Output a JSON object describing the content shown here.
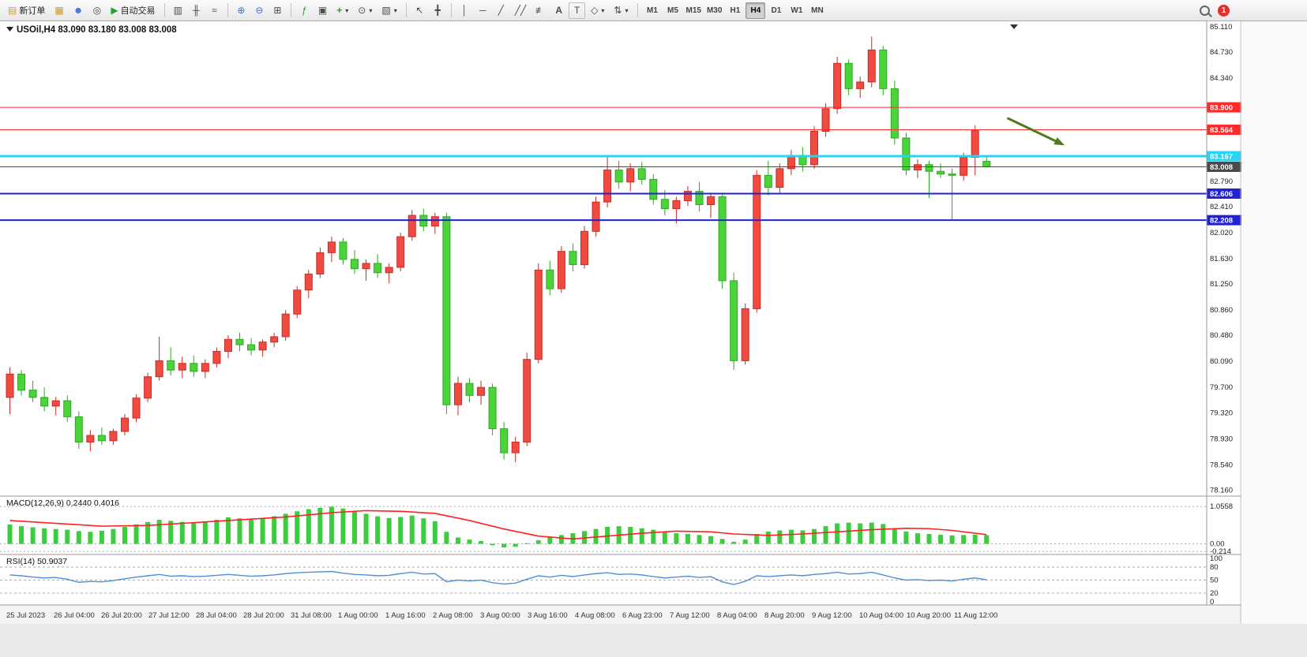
{
  "toolbar": {
    "new_order": "新订单",
    "auto_trading": "自动交易",
    "timeframes": [
      "M1",
      "M5",
      "M15",
      "M30",
      "H1",
      "H4",
      "D1",
      "W1",
      "MN"
    ],
    "active_timeframe": "H4",
    "notification_count": "1",
    "text_tool": "A",
    "textbox_tool": "T"
  },
  "icons": {
    "new_order": "▤",
    "symbols": "▦",
    "market_watch": "☻",
    "data_window": "◎",
    "auto_trading": "▶",
    "bar_chart": "▥",
    "candle_chart": "╫",
    "line_chart": "≈",
    "zoom_in": "⊕",
    "zoom_out": "⊖",
    "grid": "⊞",
    "indicators": "ƒ",
    "objects_list": "▣",
    "add_indicator": "+",
    "periods": "⊙",
    "templates": "▧",
    "cursor": "↖",
    "crosshair": "╋",
    "vline": "│",
    "hline": "─",
    "trendline": "╱",
    "channel": "╱╱",
    "fibonacci": "≢",
    "shapes": "◇",
    "arrows_tool": "⇅",
    "dropdown": "▾"
  },
  "chart": {
    "symbol_header": "USOil,H4 83.090 83.180 83.008 83.008",
    "macd_header": "MACD(12,26,9) 0.2440 0.4016",
    "rsi_header": "RSI(14) 50.9037"
  },
  "chart_data": {
    "type": "candlestick",
    "title": "USOil,H4",
    "ohlc_display": {
      "open": "83.090",
      "high": "83.180",
      "low": "83.008",
      "close": "83.008"
    },
    "ylim": [
      78.07,
      85.19
    ],
    "colors": {
      "up": "#f04a41",
      "up_stroke": "#c92c24",
      "down": "#4ad43a",
      "down_stroke": "#2fa823"
    },
    "price_axis_ticks": [
      "85.110",
      "84.730",
      "84.340",
      "82.790",
      "82.410",
      "82.020",
      "81.630",
      "81.250",
      "80.860",
      "80.480",
      "80.090",
      "79.700",
      "79.320",
      "78.930",
      "78.540",
      "78.160"
    ],
    "candles": [
      [
        79.55,
        80.0,
        79.3,
        79.9
      ],
      [
        79.9,
        79.96,
        79.58,
        79.66
      ],
      [
        79.66,
        79.8,
        79.48,
        79.55
      ],
      [
        79.55,
        79.7,
        79.34,
        79.42
      ],
      [
        79.42,
        79.56,
        79.28,
        79.5
      ],
      [
        79.5,
        79.58,
        79.18,
        79.26
      ],
      [
        79.26,
        79.34,
        78.78,
        78.88
      ],
      [
        78.88,
        79.06,
        78.74,
        78.98
      ],
      [
        78.98,
        79.1,
        78.84,
        78.9
      ],
      [
        78.9,
        79.08,
        78.84,
        79.04
      ],
      [
        79.04,
        79.3,
        78.98,
        79.24
      ],
      [
        79.24,
        79.6,
        79.18,
        79.54
      ],
      [
        79.54,
        79.92,
        79.48,
        79.86
      ],
      [
        79.86,
        80.46,
        79.8,
        80.1
      ],
      [
        80.1,
        80.3,
        79.88,
        79.96
      ],
      [
        79.96,
        80.16,
        79.84,
        80.06
      ],
      [
        80.06,
        80.18,
        79.86,
        79.94
      ],
      [
        79.94,
        80.12,
        79.84,
        80.06
      ],
      [
        80.06,
        80.3,
        80.0,
        80.24
      ],
      [
        80.24,
        80.48,
        80.14,
        80.42
      ],
      [
        80.42,
        80.52,
        80.24,
        80.34
      ],
      [
        80.34,
        80.44,
        80.18,
        80.26
      ],
      [
        80.26,
        80.42,
        80.16,
        80.38
      ],
      [
        80.38,
        80.52,
        80.3,
        80.46
      ],
      [
        80.46,
        80.86,
        80.4,
        80.8
      ],
      [
        80.8,
        81.22,
        80.74,
        81.16
      ],
      [
        81.16,
        81.46,
        81.04,
        81.4
      ],
      [
        81.4,
        81.8,
        81.34,
        81.72
      ],
      [
        81.72,
        81.96,
        81.58,
        81.88
      ],
      [
        81.88,
        81.94,
        81.54,
        81.62
      ],
      [
        81.62,
        81.76,
        81.4,
        81.48
      ],
      [
        81.48,
        81.62,
        81.3,
        81.56
      ],
      [
        81.56,
        81.7,
        81.34,
        81.42
      ],
      [
        81.42,
        81.56,
        81.26,
        81.5
      ],
      [
        81.5,
        82.02,
        81.44,
        81.96
      ],
      [
        81.96,
        82.36,
        81.9,
        82.28
      ],
      [
        82.28,
        82.38,
        82.04,
        82.12
      ],
      [
        82.12,
        82.32,
        82.0,
        82.26
      ],
      [
        82.26,
        82.32,
        79.3,
        79.44
      ],
      [
        79.44,
        79.86,
        79.28,
        79.76
      ],
      [
        79.76,
        79.84,
        79.48,
        79.58
      ],
      [
        79.58,
        79.8,
        79.44,
        79.7
      ],
      [
        79.7,
        79.76,
        78.98,
        79.08
      ],
      [
        79.08,
        79.18,
        78.62,
        78.72
      ],
      [
        78.72,
        78.96,
        78.58,
        78.88
      ],
      [
        78.88,
        80.22,
        78.82,
        80.12
      ],
      [
        80.12,
        81.56,
        80.06,
        81.46
      ],
      [
        81.46,
        81.6,
        81.08,
        81.18
      ],
      [
        81.18,
        81.82,
        81.12,
        81.74
      ],
      [
        81.74,
        81.86,
        81.44,
        81.54
      ],
      [
        81.54,
        82.12,
        81.48,
        82.04
      ],
      [
        82.04,
        82.56,
        81.96,
        82.48
      ],
      [
        82.48,
        83.17,
        82.4,
        82.96
      ],
      [
        82.96,
        83.1,
        82.68,
        82.78
      ],
      [
        82.78,
        83.06,
        82.64,
        82.98
      ],
      [
        82.98,
        83.08,
        82.74,
        82.82
      ],
      [
        82.82,
        82.9,
        82.44,
        82.52
      ],
      [
        82.52,
        82.66,
        82.28,
        82.38
      ],
      [
        82.38,
        82.56,
        82.16,
        82.5
      ],
      [
        82.5,
        82.72,
        82.42,
        82.64
      ],
      [
        82.64,
        82.78,
        82.34,
        82.44
      ],
      [
        82.44,
        82.62,
        82.24,
        82.56
      ],
      [
        82.56,
        82.62,
        81.18,
        81.3
      ],
      [
        81.3,
        81.42,
        79.96,
        80.1
      ],
      [
        80.1,
        80.96,
        80.04,
        80.88
      ],
      [
        80.88,
        82.96,
        80.82,
        82.88
      ],
      [
        82.88,
        83.1,
        82.58,
        82.7
      ],
      [
        82.7,
        83.06,
        82.62,
        82.98
      ],
      [
        82.98,
        83.26,
        82.88,
        83.18
      ],
      [
        83.18,
        83.3,
        82.94,
        83.04
      ],
      [
        83.04,
        83.62,
        82.98,
        83.54
      ],
      [
        83.54,
        83.96,
        83.46,
        83.88
      ],
      [
        83.88,
        84.66,
        83.8,
        84.56
      ],
      [
        84.56,
        84.62,
        84.08,
        84.18
      ],
      [
        84.18,
        84.36,
        84.04,
        84.28
      ],
      [
        84.28,
        84.96,
        84.2,
        84.76
      ],
      [
        84.76,
        84.82,
        84.08,
        84.18
      ],
      [
        84.18,
        84.3,
        83.34,
        83.44
      ],
      [
        83.44,
        83.52,
        82.88,
        82.96
      ],
      [
        82.96,
        83.12,
        82.84,
        83.04
      ],
      [
        83.04,
        83.1,
        82.54,
        82.94
      ],
      [
        82.94,
        83.06,
        82.84,
        82.9
      ],
      [
        82.9,
        82.98,
        82.2,
        82.88
      ],
      [
        82.88,
        83.22,
        82.8,
        83.15
      ],
      [
        83.15,
        83.63,
        82.88,
        83.55
      ],
      [
        83.09,
        83.18,
        83.008,
        83.008
      ]
    ],
    "hlines": [
      {
        "label": "83.900",
        "price": 83.9,
        "color": "#ff2a2a",
        "width": 1
      },
      {
        "label": "83.564",
        "price": 83.564,
        "color": "#ff2a2a",
        "width": 1
      },
      {
        "label": "83.167",
        "price": 83.167,
        "color": "#29d3f5",
        "width": 3
      },
      {
        "label": "83.008",
        "price": 83.008,
        "color": "#4a4a4a",
        "width": 1
      },
      {
        "label": "82.606",
        "price": 82.606,
        "color": "#2121d6",
        "width": 2
      },
      {
        "label": "82.208",
        "price": 82.208,
        "color": "#2121d6",
        "width": 2
      }
    ],
    "annotation_arrow": {
      "from": [
        86.8,
        83.74
      ],
      "to": [
        91.8,
        83.33
      ],
      "color": "#4e7c1f"
    },
    "macd": {
      "label": "MACD(12,26,9)",
      "values_text": "0.2440 0.4016",
      "ylim": [
        -0.3,
        1.35
      ],
      "axis": [
        "1.0558",
        "0.00",
        "-0.214"
      ],
      "hist_color": "#3ccc3c",
      "signal_color": "#ff2020",
      "histogram": [
        0.55,
        0.5,
        0.47,
        0.44,
        0.42,
        0.4,
        0.36,
        0.34,
        0.37,
        0.42,
        0.48,
        0.55,
        0.62,
        0.68,
        0.65,
        0.62,
        0.6,
        0.63,
        0.68,
        0.75,
        0.72,
        0.7,
        0.73,
        0.78,
        0.85,
        0.92,
        0.98,
        1.02,
        1.05,
        1.0,
        0.92,
        0.85,
        0.78,
        0.73,
        0.76,
        0.8,
        0.72,
        0.64,
        0.34,
        0.18,
        0.12,
        0.08,
        -0.04,
        -0.1,
        -0.08,
        0.02,
        0.1,
        0.18,
        0.25,
        0.3,
        0.36,
        0.42,
        0.48,
        0.5,
        0.48,
        0.44,
        0.4,
        0.34,
        0.3,
        0.28,
        0.25,
        0.22,
        0.14,
        0.06,
        0.12,
        0.28,
        0.35,
        0.38,
        0.4,
        0.38,
        0.42,
        0.5,
        0.58,
        0.6,
        0.58,
        0.6,
        0.56,
        0.44,
        0.35,
        0.3,
        0.28,
        0.26,
        0.24,
        0.25,
        0.26,
        0.244
      ],
      "signal": [
        [
          0,
          0.66
        ],
        [
          4,
          0.58
        ],
        [
          8,
          0.5
        ],
        [
          12,
          0.52
        ],
        [
          16,
          0.6
        ],
        [
          20,
          0.68
        ],
        [
          24,
          0.76
        ],
        [
          28,
          0.88
        ],
        [
          31,
          0.94
        ],
        [
          34,
          0.92
        ],
        [
          37,
          0.86
        ],
        [
          40,
          0.66
        ],
        [
          43,
          0.42
        ],
        [
          46,
          0.22
        ],
        [
          49,
          0.14
        ],
        [
          52,
          0.22
        ],
        [
          55,
          0.3
        ],
        [
          58,
          0.36
        ],
        [
          61,
          0.34
        ],
        [
          63,
          0.28
        ],
        [
          66,
          0.24
        ],
        [
          69,
          0.28
        ],
        [
          72,
          0.34
        ],
        [
          75,
          0.4
        ],
        [
          78,
          0.44
        ],
        [
          80,
          0.43
        ],
        [
          82,
          0.38
        ],
        [
          84,
          0.3
        ],
        [
          85,
          0.26
        ]
      ]
    },
    "rsi": {
      "label": "RSI(14)",
      "value_text": "50.9037",
      "ylim": [
        0,
        100
      ],
      "levels": [
        80,
        50,
        20
      ],
      "axis": [
        "100",
        "80",
        "50",
        "20",
        "0"
      ],
      "line_color": "#4f8fd6",
      "values": [
        62,
        60,
        57,
        55,
        56,
        52,
        45,
        47,
        46,
        49,
        53,
        57,
        60,
        63,
        59,
        60,
        58,
        59,
        61,
        63,
        61,
        59,
        60,
        62,
        65,
        67,
        68,
        69,
        70,
        66,
        63,
        62,
        60,
        61,
        65,
        68,
        64,
        65,
        46,
        50,
        48,
        50,
        44,
        41,
        43,
        52,
        60,
        57,
        61,
        58,
        62,
        65,
        67,
        63,
        64,
        62,
        58,
        55,
        57,
        59,
        56,
        58,
        46,
        40,
        47,
        60,
        58,
        60,
        62,
        60,
        63,
        65,
        68,
        64,
        65,
        68,
        62,
        55,
        50,
        51,
        49,
        50,
        48,
        52,
        55,
        50.9
      ]
    },
    "time_axis": [
      "25 Jul 2023",
      "26 Jul 04:00",
      "26 Jul 20:00",
      "27 Jul 12:00",
      "28 Jul 04:00",
      "28 Jul 20:00",
      "31 Jul 08:00",
      "1 Aug 00:00",
      "1 Aug 16:00",
      "2 Aug 08:00",
      "3 Aug 00:00",
      "3 Aug 16:00",
      "4 Aug 08:00",
      "6 Aug 23:00",
      "7 Aug 12:00",
      "8 Aug 04:00",
      "8 Aug 20:00",
      "9 Aug 12:00",
      "10 Aug 04:00",
      "10 Aug 20:00",
      "11 Aug 12:00"
    ]
  }
}
